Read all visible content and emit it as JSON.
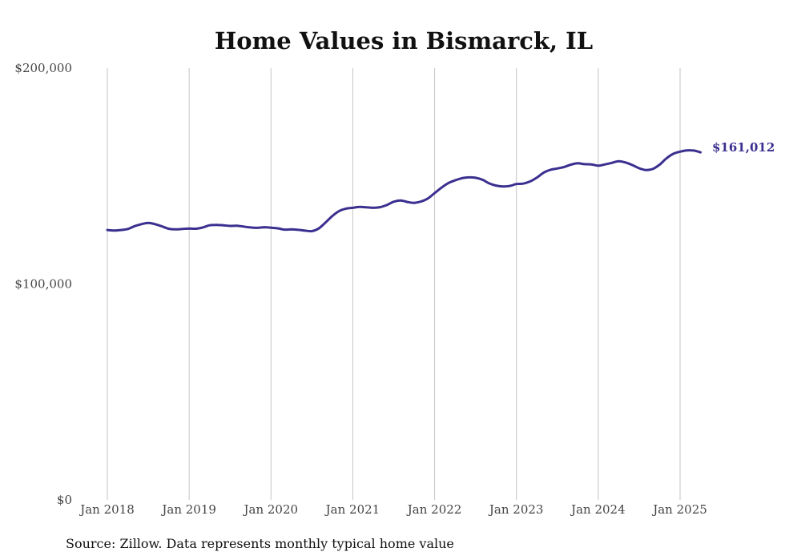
{
  "chart_data": {
    "type": "line",
    "title": "Home Values in Bismarck, IL",
    "xlabel": "",
    "ylabel": "",
    "x_ticks": [
      "Jan 2018",
      "Jan 2019",
      "Jan 2020",
      "Jan 2021",
      "Jan 2022",
      "Jan 2023",
      "Jan 2024",
      "Jan 2025"
    ],
    "y_ticks": [
      "$0",
      "$100,000",
      "$200,000"
    ],
    "ylim": [
      0,
      200000
    ],
    "xlim": [
      "2018-01",
      "2025-04"
    ],
    "grid": "vertical",
    "end_label": "$161,012",
    "line_color": "#3b2f8f",
    "series": [
      {
        "x": [
          "2018-01",
          "2018-02",
          "2018-03",
          "2018-04",
          "2018-05",
          "2018-06",
          "2018-07",
          "2018-08",
          "2018-09",
          "2018-10",
          "2018-11",
          "2018-12",
          "2019-01",
          "2019-02",
          "2019-03",
          "2019-04",
          "2019-05",
          "2019-06",
          "2019-07",
          "2019-08",
          "2019-09",
          "2019-10",
          "2019-11",
          "2019-12",
          "2020-01",
          "2020-02",
          "2020-03",
          "2020-04",
          "2020-05",
          "2020-06",
          "2020-07",
          "2020-08",
          "2020-09",
          "2020-10",
          "2020-11",
          "2020-12",
          "2021-01",
          "2021-02",
          "2021-03",
          "2021-04",
          "2021-05",
          "2021-06",
          "2021-07",
          "2021-08",
          "2021-09",
          "2021-10",
          "2021-11",
          "2021-12",
          "2022-01",
          "2022-02",
          "2022-03",
          "2022-04",
          "2022-05",
          "2022-06",
          "2022-07",
          "2022-08",
          "2022-09",
          "2022-10",
          "2022-11",
          "2022-12",
          "2023-01",
          "2023-02",
          "2023-03",
          "2023-04",
          "2023-05",
          "2023-06",
          "2023-07",
          "2023-08",
          "2023-09",
          "2023-10",
          "2023-11",
          "2023-12",
          "2024-01",
          "2024-02",
          "2024-03",
          "2024-04",
          "2024-05",
          "2024-06",
          "2024-07",
          "2024-08",
          "2024-09",
          "2024-10",
          "2024-11",
          "2024-12",
          "2025-01",
          "2025-02",
          "2025-03",
          "2025-04"
        ],
        "values": [
          125000,
          124800,
          125000,
          125500,
          126800,
          127700,
          128300,
          127700,
          126700,
          125600,
          125300,
          125500,
          125700,
          125600,
          126200,
          127200,
          127400,
          127200,
          126900,
          127000,
          126600,
          126200,
          126000,
          126300,
          126100,
          125800,
          125200,
          125300,
          125100,
          124700,
          124500,
          125700,
          128500,
          131500,
          133800,
          134900,
          135300,
          135700,
          135500,
          135300,
          135600,
          136600,
          138100,
          138700,
          138000,
          137600,
          138200,
          139600,
          142100,
          144600,
          146700,
          148000,
          149000,
          149400,
          149200,
          148300,
          146600,
          145600,
          145200,
          145400,
          146300,
          146500,
          147500,
          149300,
          151600,
          152900,
          153500,
          154200,
          155300,
          155900,
          155500,
          155400,
          154800,
          155400,
          156100,
          156900,
          156300,
          155100,
          153600,
          152800,
          153300,
          155300,
          158200,
          160300,
          161300,
          161900,
          161800,
          161012
        ]
      }
    ]
  },
  "source_note": "Source: Zillow. Data represents monthly typical home value"
}
